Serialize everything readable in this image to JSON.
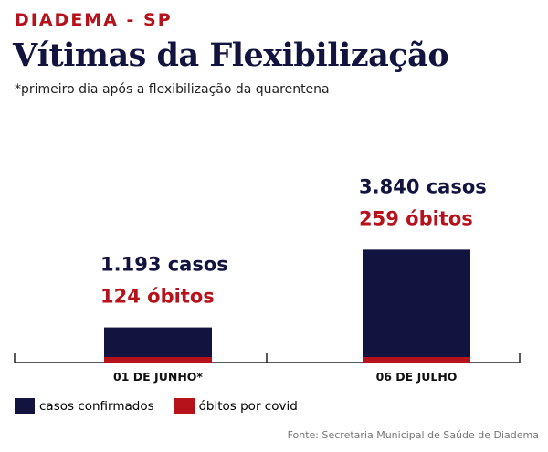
{
  "header": {
    "kicker": "DIADEMA - SP",
    "title": "Vítimas da Flexibilização",
    "subtitle": "*primeiro dia após a flexibilização da quarentena"
  },
  "colors": {
    "navy": "#13133f",
    "red": "#b5121b"
  },
  "legend": {
    "cases_label": "casos confirmados",
    "deaths_label": "óbitos por covid"
  },
  "source": "Fonte: Secretaria Municipal de Saúde de Diadema",
  "chart_data": {
    "type": "bar",
    "stacked": "overlay",
    "categories": [
      "01 DE JUNHO*",
      "06 DE JULHO"
    ],
    "series": [
      {
        "name": "casos confirmados",
        "values": [
          1193,
          3840
        ],
        "color": "#13133f"
      },
      {
        "name": "óbitos por covid",
        "values": [
          124,
          259
        ],
        "color": "#b5121b"
      }
    ],
    "data_labels": [
      {
        "cases": "1.193 casos",
        "deaths": "124 óbitos"
      },
      {
        "cases": "3.840 casos",
        "deaths": "259 óbitos"
      }
    ],
    "grid": false,
    "legend_position": "bottom-left"
  }
}
